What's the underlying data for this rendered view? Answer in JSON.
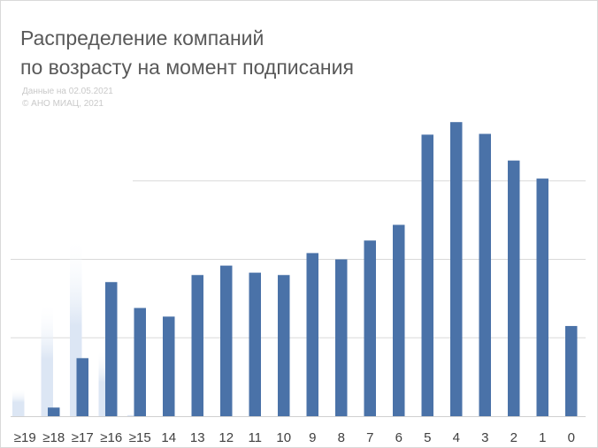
{
  "chart_data": {
    "type": "bar",
    "title": "Распределение компаний по возрасту на момент подписания",
    "title_lines": [
      "Распределение компаний",
      "по возрасту на момент подписания"
    ],
    "source_lines": [
      "Данные на 02.05.2021",
      "© АНО МИАЦ, 2021"
    ],
    "xlabel": "",
    "ylabel": "",
    "categories": [
      "≥19",
      "≥18",
      "≥17",
      "≥16",
      "≥15",
      "14",
      "13",
      "12",
      "11",
      "10",
      "9",
      "8",
      "7",
      "6",
      "5",
      "4",
      "3",
      "2",
      "1",
      "0"
    ],
    "values": [
      0,
      1.1,
      7.4,
      17.1,
      13.8,
      12.7,
      18.0,
      19.2,
      18.3,
      18.0,
      20.8,
      20.0,
      22.4,
      24.4,
      35.9,
      37.5,
      36.0,
      32.6,
      30.3,
      11.5
    ],
    "faded_values": [
      3.5,
      14.6,
      23.0,
      8.6,
      0.2
    ],
    "ylim": [
      0,
      40
    ],
    "grid": true,
    "legend": "none",
    "colors": {
      "bar": "#4a72a8",
      "faded": "#dce6f4",
      "grid": "#d9d9d9",
      "axis": "#d0d0d0",
      "tick_text": "#404040"
    }
  }
}
